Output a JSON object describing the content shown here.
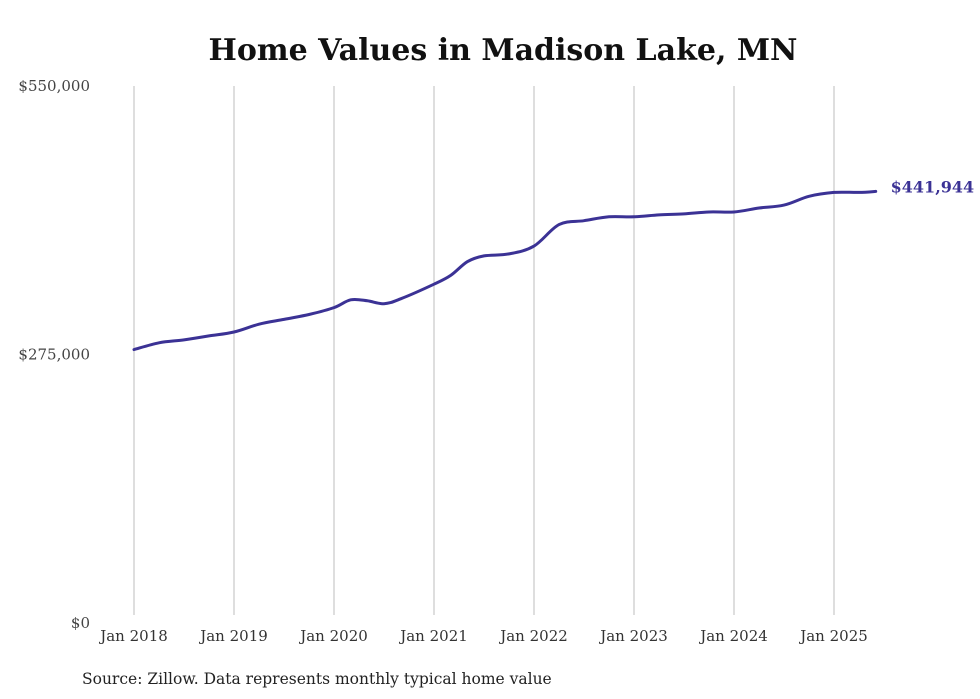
{
  "chart_data": {
    "type": "line",
    "title": "Home Values in Madison Lake, MN",
    "xlabel": "",
    "ylabel": "",
    "ylim": [
      0,
      550000
    ],
    "y_ticks": [
      {
        "value": 0,
        "label": "$0"
      },
      {
        "value": 275000,
        "label": "$275,000"
      },
      {
        "value": 550000,
        "label": "$550,000"
      }
    ],
    "x_ticks": [
      {
        "value": "2018-01",
        "label": "Jan 2018"
      },
      {
        "value": "2019-01",
        "label": "Jan 2019"
      },
      {
        "value": "2020-01",
        "label": "Jan 2020"
      },
      {
        "value": "2021-01",
        "label": "Jan 2021"
      },
      {
        "value": "2022-01",
        "label": "Jan 2022"
      },
      {
        "value": "2023-01",
        "label": "Jan 2023"
      },
      {
        "value": "2024-01",
        "label": "Jan 2024"
      },
      {
        "value": "2025-01",
        "label": "Jan 2025"
      }
    ],
    "grid": {
      "vertical": true,
      "horizontal": false
    },
    "series": [
      {
        "color": "#3b3295",
        "end_label": "$441,944",
        "x": [
          "2018-01",
          "2018-04",
          "2018-07",
          "2018-10",
          "2019-01",
          "2019-04",
          "2019-07",
          "2019-10",
          "2020-01",
          "2020-03",
          "2020-05",
          "2020-07",
          "2020-09",
          "2021-01",
          "2021-03",
          "2021-05",
          "2021-07",
          "2021-10",
          "2022-01",
          "2022-04",
          "2022-07",
          "2022-10",
          "2023-01",
          "2023-04",
          "2023-07",
          "2023-10",
          "2024-01",
          "2024-04",
          "2024-07",
          "2024-10",
          "2025-01",
          "2025-04",
          "2025-06"
        ],
        "y": [
          280000,
          287000,
          290000,
          294000,
          298000,
          306000,
          311000,
          316000,
          323000,
          331000,
          330000,
          327000,
          332000,
          347000,
          356000,
          370000,
          376000,
          378000,
          386000,
          408000,
          412000,
          416000,
          416000,
          418000,
          419000,
          421000,
          421000,
          425000,
          428000,
          437000,
          441000,
          441000,
          442000
        ]
      }
    ]
  },
  "footer": {
    "source": "Source: Zillow. Data represents monthly typical home value"
  }
}
